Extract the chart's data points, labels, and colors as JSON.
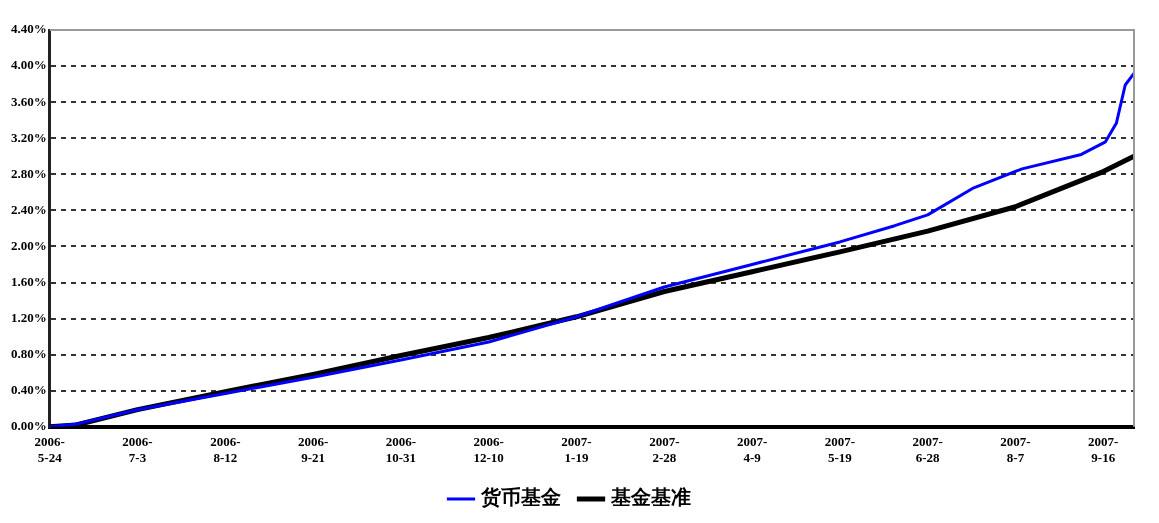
{
  "chart_data": {
    "type": "line",
    "xlim": [
      "2006-05-24",
      "2007-09-30"
    ],
    "xticks": [
      {
        "value": "2006-05-24",
        "label": "2006-5-24"
      },
      {
        "value": "2006-07-03",
        "label": "2006-7-3"
      },
      {
        "value": "2006-08-12",
        "label": "2006-8-12"
      },
      {
        "value": "2006-09-21",
        "label": "2006-9-21"
      },
      {
        "value": "2006-10-31",
        "label": "2006-10-31"
      },
      {
        "value": "2006-12-10",
        "label": "2006-12-10"
      },
      {
        "value": "2007-01-19",
        "label": "2007-1-19"
      },
      {
        "value": "2007-02-28",
        "label": "2007-2-28"
      },
      {
        "value": "2007-04-09",
        "label": "2007-4-9"
      },
      {
        "value": "2007-05-19",
        "label": "2007-5-19"
      },
      {
        "value": "2007-06-28",
        "label": "2007-6-28"
      },
      {
        "value": "2007-08-07",
        "label": "2007-8-7"
      },
      {
        "value": "2007-09-16",
        "label": "2007-9-16"
      }
    ],
    "ylim": [
      0,
      4.4
    ],
    "yticks": [
      {
        "value": 0,
        "label": "0.00%"
      },
      {
        "value": 0.4,
        "label": "0.40%"
      },
      {
        "value": 0.8,
        "label": "0.80%"
      },
      {
        "value": 1.2,
        "label": "1.20%"
      },
      {
        "value": 1.6,
        "label": "1.60%"
      },
      {
        "value": 2,
        "label": "2.00%"
      },
      {
        "value": 2.4,
        "label": "2.40%"
      },
      {
        "value": 2.8,
        "label": "2.80%"
      },
      {
        "value": 3.2,
        "label": "3.20%"
      },
      {
        "value": 3.6,
        "label": "3.60%"
      },
      {
        "value": 4,
        "label": "4.00%"
      },
      {
        "value": 4.4,
        "label": "4.40%"
      }
    ],
    "grid": "y",
    "legend": "bottom",
    "marker": "none",
    "line_style": "solid",
    "series": [
      {
        "name": "货币基金",
        "color": "#0000ff",
        "x": [
          "2006-05-24",
          "2006-06-05",
          "2006-07-03",
          "2006-08-12",
          "2006-09-21",
          "2006-10-31",
          "2006-12-10",
          "2007-01-19",
          "2007-02-28",
          "2007-04-09",
          "2007-05-19",
          "2007-06-13",
          "2007-06-28",
          "2007-07-19",
          "2007-08-10",
          "2007-09-06",
          "2007-09-17",
          "2007-09-22",
          "2007-09-26",
          "2007-09-30"
        ],
        "values": [
          0,
          0.03,
          0.19,
          0.37,
          0.55,
          0.74,
          0.94,
          1.22,
          1.55,
          1.8,
          2.05,
          2.23,
          2.35,
          2.65,
          2.86,
          3.02,
          3.16,
          3.37,
          3.79,
          3.92
        ]
      },
      {
        "name": "基金基准",
        "color": "#000000",
        "x": [
          "2006-05-24",
          "2006-06-05",
          "2006-07-03",
          "2006-08-12",
          "2006-09-21",
          "2006-10-31",
          "2006-12-10",
          "2007-01-19",
          "2007-02-28",
          "2007-04-09",
          "2007-05-19",
          "2007-06-28",
          "2007-08-07",
          "2007-09-16",
          "2007-09-30"
        ],
        "values": [
          0,
          0.02,
          0.19,
          0.39,
          0.58,
          0.79,
          0.99,
          1.22,
          1.5,
          1.72,
          1.94,
          2.17,
          2.44,
          2.83,
          3.0
        ]
      }
    ]
  }
}
